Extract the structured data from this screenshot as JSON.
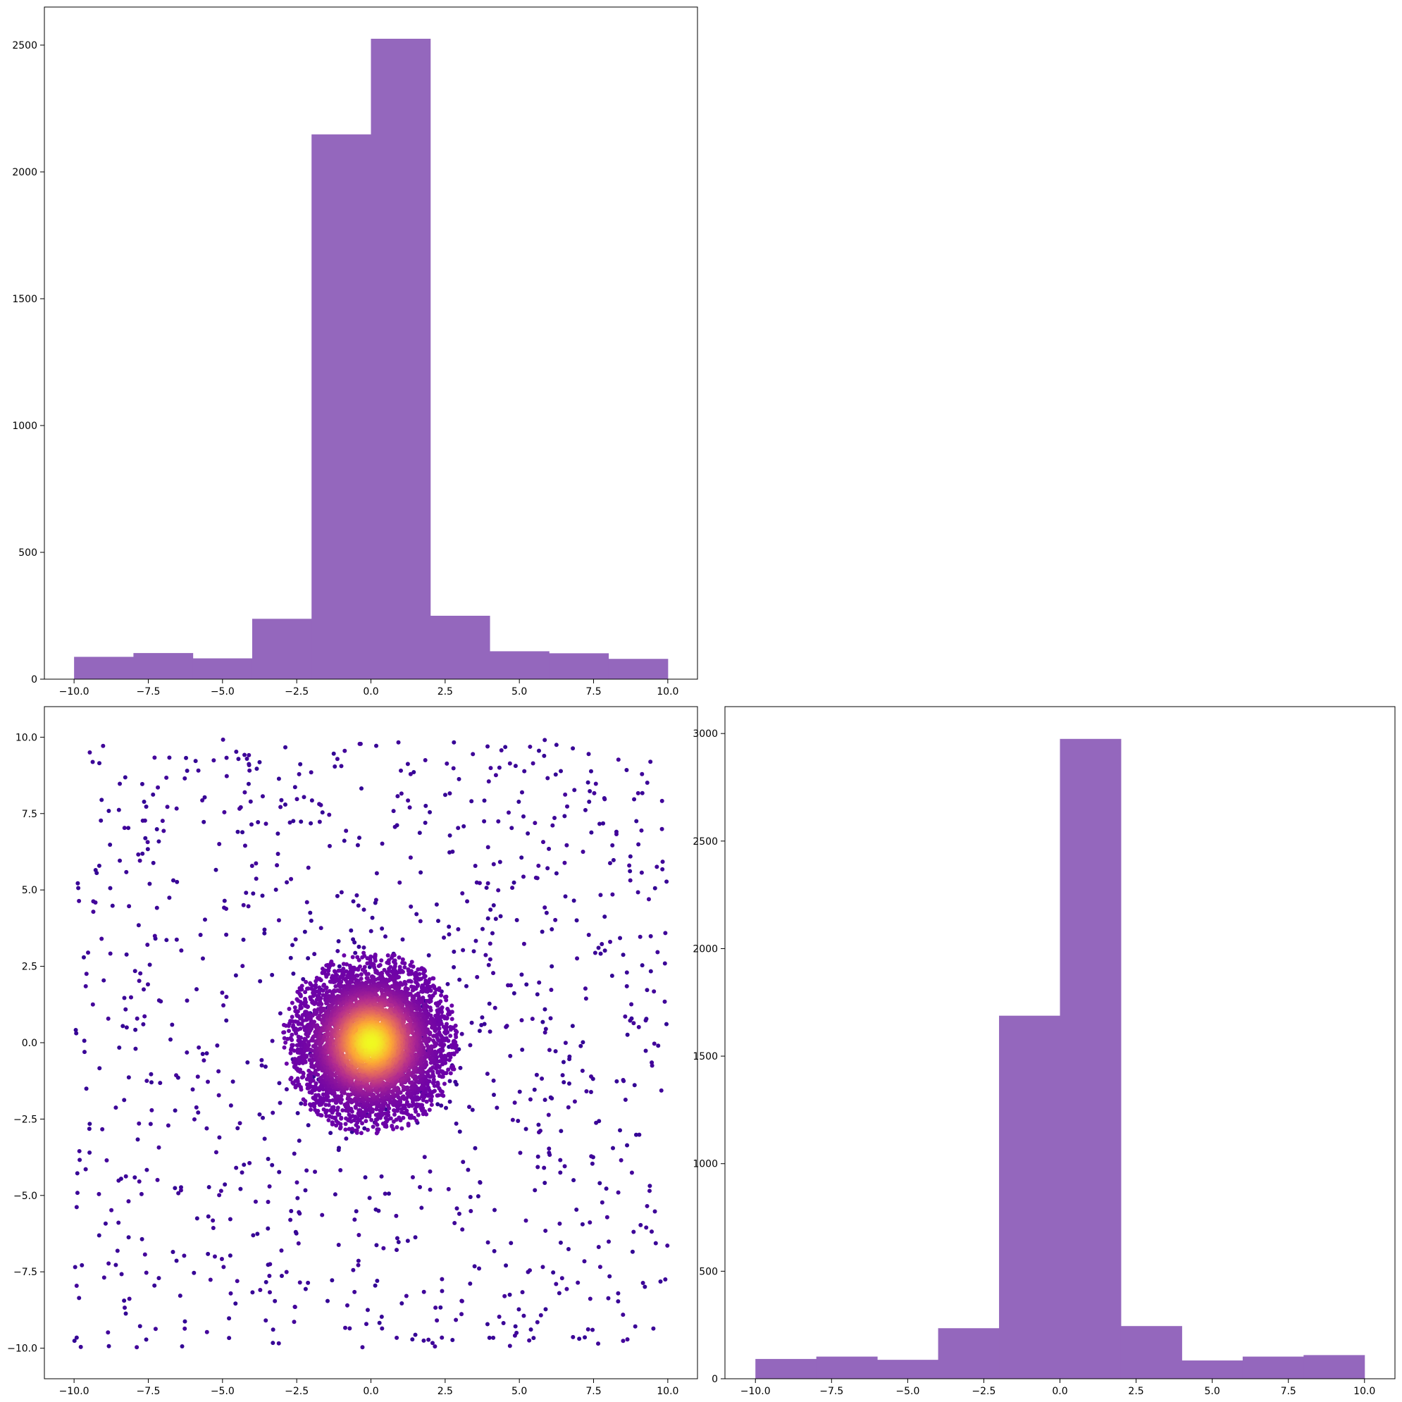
{
  "chart_data": [
    {
      "id": "hist-x",
      "type": "bar",
      "title": "",
      "xlabel": "",
      "ylabel": "",
      "bin_edges": [
        -10,
        -8,
        -6,
        -4,
        -2,
        0,
        2,
        4,
        6,
        8,
        10
      ],
      "values": [
        88,
        103,
        82,
        238,
        2148,
        2525,
        250,
        110,
        102,
        80
      ],
      "xlim": [
        -11,
        11
      ],
      "ylim": [
        0,
        2650
      ],
      "xticks": [
        -10.0,
        -7.5,
        -5.0,
        -2.5,
        0.0,
        2.5,
        5.0,
        7.5,
        10.0
      ],
      "xtick_labels": [
        "−10.0",
        "−7.5",
        "−5.0",
        "−2.5",
        "0.0",
        "2.5",
        "5.0",
        "7.5",
        "10.0"
      ],
      "yticks": [
        0,
        500,
        1000,
        1500,
        2000,
        2500
      ],
      "ytick_labels": [
        "0",
        "500",
        "1000",
        "1500",
        "2000",
        "2500"
      ],
      "color": "#9467bd"
    },
    {
      "id": "scatter",
      "type": "scatter",
      "title": "",
      "xlabel": "",
      "ylabel": "",
      "description_of_points": "about 1000 uniformly scattered points in [-10,10]x[-10,10] plus a dense gaussian cluster of about 5000 points within radius 3 centered at (0,0); color encodes density",
      "uniform_count": 1000,
      "cluster_count": 5000,
      "cluster_center": [
        0,
        0
      ],
      "cluster_radius": 3,
      "xlim": [
        -11,
        11
      ],
      "ylim": [
        -11,
        11
      ],
      "xticks": [
        -10.0,
        -7.5,
        -5.0,
        -2.5,
        0.0,
        2.5,
        5.0,
        7.5,
        10.0
      ],
      "xtick_labels": [
        "−10.0",
        "−7.5",
        "−5.0",
        "−2.5",
        "0.0",
        "2.5",
        "5.0",
        "7.5",
        "10.0"
      ],
      "yticks": [
        -10.0,
        -7.5,
        -5.0,
        -2.5,
        0.0,
        2.5,
        5.0,
        7.5,
        10.0
      ],
      "ytick_labels": [
        "−10.0",
        "−7.5",
        "−5.0",
        "−2.5",
        "0.0",
        "2.5",
        "5.0",
        "7.5",
        "10.0"
      ],
      "colormap": [
        "#0d0887",
        "#6a00a8",
        "#b12a90",
        "#e16462",
        "#fca636",
        "#f0f921"
      ]
    },
    {
      "id": "hist-y",
      "type": "bar",
      "title": "",
      "xlabel": "",
      "ylabel": "",
      "bin_edges": [
        -10,
        -8,
        -6,
        -4,
        -2,
        0,
        2,
        4,
        6,
        8,
        10
      ],
      "values": [
        92,
        103,
        88,
        235,
        1688,
        2975,
        245,
        85,
        103,
        110
      ],
      "xlim": [
        -11,
        11
      ],
      "ylim": [
        0,
        3125
      ],
      "xticks": [
        -10.0,
        -7.5,
        -5.0,
        -2.5,
        0.0,
        2.5,
        5.0,
        7.5,
        10.0
      ],
      "xtick_labels": [
        "−10.0",
        "−7.5",
        "−5.0",
        "−2.5",
        "0.0",
        "2.5",
        "5.0",
        "7.5",
        "10.0"
      ],
      "yticks": [
        0,
        500,
        1000,
        1500,
        2000,
        2500,
        3000
      ],
      "ytick_labels": [
        "0",
        "500",
        "1000",
        "1500",
        "2000",
        "2500",
        "3000"
      ],
      "color": "#9467bd"
    }
  ]
}
